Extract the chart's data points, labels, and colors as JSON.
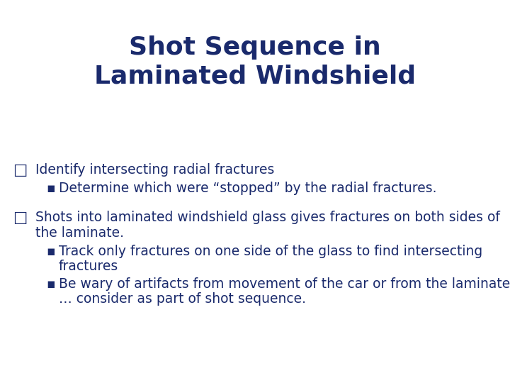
{
  "title_line1": "Shot Sequence in",
  "title_line2": "Laminated Windshield",
  "title_color": "#1a2a6c",
  "title_fontsize": 26,
  "background_color": "#ffffff",
  "text_color": "#1a2a6c",
  "body_fontsize": 13.5,
  "sub_fontsize": 13.5,
  "main_bullet_char": "□",
  "sub_bullet_char": "▪",
  "bullets": [
    {
      "text": "Identify intersecting radial fractures",
      "subs": [
        "Determine which were “stopped” by the radial fractures."
      ]
    },
    {
      "text": "Shots into laminated windshield glass gives fractures on both sides of\nthe laminate.",
      "subs": [
        "Track only fractures on one side of the glass to find intersecting\nfractures",
        "Be wary of artifacts from movement of the car or from the laminate\n… consider as part of shot sequence."
      ]
    }
  ]
}
